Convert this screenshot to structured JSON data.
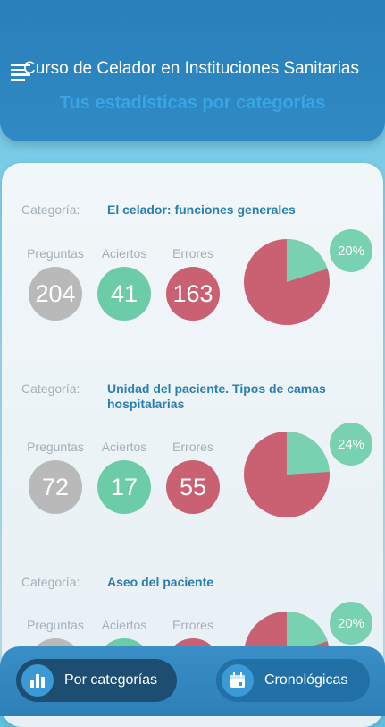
{
  "header": {
    "title": "Curso de Celador en Instituciones Sanitarias",
    "subtitle": "Tus estadísticas por categorías"
  },
  "labels": {
    "category": "Categoría:",
    "questions": "Preguntas",
    "hits": "Aciertos",
    "errors": "Errores"
  },
  "categories": [
    {
      "name": "El celador: funciones generales",
      "questions": "204",
      "hits": "41",
      "errors": "163",
      "percent": "20%",
      "hit_fraction": 0.2
    },
    {
      "name": "Unidad del paciente. Tipos de camas hospitalarias",
      "questions": "72",
      "hits": "17",
      "errors": "55",
      "percent": "24%",
      "hit_fraction": 0.24
    },
    {
      "name": "Aseo del paciente",
      "questions": "",
      "hits": "",
      "errors": "",
      "percent": "20%",
      "hit_fraction": 0.2
    }
  ],
  "tabs": {
    "by_category": "Por categorías",
    "chronological": "Cronológicas"
  },
  "colors": {
    "hits": "#78d1b0",
    "errors": "#c96172",
    "questions": "#b9b9b9",
    "accent": "#3aa5e5"
  }
}
